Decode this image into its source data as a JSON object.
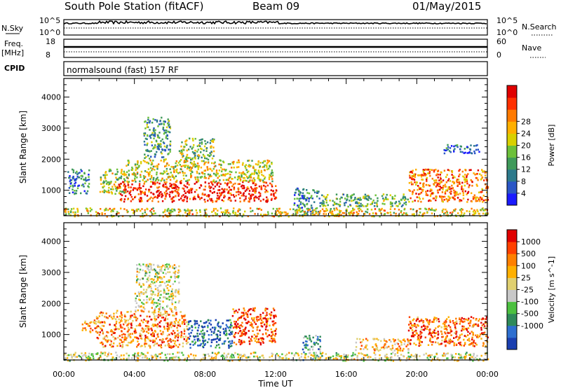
{
  "header": {
    "station": "South Pole Station (fitACF)",
    "beam": "Beam 09",
    "date": "01/May/2015"
  },
  "noise_panel": {
    "left_label": "N.Sky",
    "right_label": "N.Search",
    "left_ticks": [
      "10^5",
      "10^0"
    ],
    "right_ticks": [
      "10^5",
      "10^0"
    ]
  },
  "freq_panel": {
    "left_label_1": "Freq.",
    "left_label_2": "[MHz]",
    "right_label": "Nave",
    "left_ticks": [
      "18",
      "8"
    ],
    "right_ticks": [
      "60",
      "0"
    ]
  },
  "cpid": {
    "label": "CPID",
    "value": "normalsound (fast) 157 RF"
  },
  "chart_data": [
    {
      "type": "heatmap",
      "panel": "power",
      "ylabel": "Slant Range [km]",
      "xlabel": "",
      "x_ticks": [
        "00:00",
        "04:00",
        "08:00",
        "12:00",
        "16:00",
        "20:00",
        "00:00"
      ],
      "y_ticks": [
        1000,
        2000,
        3000,
        4000
      ],
      "ylim": [
        180,
        4600
      ],
      "xlim_hours": [
        0,
        24
      ],
      "colorbar": {
        "label": "Power [dB]",
        "ticks": [
          "4",
          "8",
          "12",
          "16",
          "20",
          "24",
          "28"
        ],
        "colors": [
          "#1a1aff",
          "#2a56c6",
          "#2d7a8c",
          "#3f9a5a",
          "#6cc03a",
          "#d8d000",
          "#ffb000",
          "#ff7a00",
          "#ff3000",
          "#e00000"
        ]
      },
      "regions": [
        {
          "t0": 0.2,
          "t1": 1.4,
          "r0": 900,
          "r1": 1700,
          "level": 0.25
        },
        {
          "t0": 2.0,
          "t1": 3.5,
          "r0": 900,
          "r1": 1700,
          "level": 0.5
        },
        {
          "t0": 3.0,
          "t1": 12.0,
          "r0": 650,
          "r1": 1300,
          "level": 0.9
        },
        {
          "t0": 3.5,
          "t1": 11.8,
          "r0": 1300,
          "r1": 2000,
          "level": 0.55
        },
        {
          "t0": 4.5,
          "t1": 6.0,
          "r0": 2000,
          "r1": 3400,
          "level": 0.35
        },
        {
          "t0": 6.5,
          "t1": 8.5,
          "r0": 2000,
          "r1": 2700,
          "level": 0.45
        },
        {
          "t0": 13.0,
          "t1": 14.5,
          "r0": 200,
          "r1": 1100,
          "level": 0.25
        },
        {
          "t0": 14.5,
          "t1": 19.5,
          "r0": 500,
          "r1": 900,
          "level": 0.4
        },
        {
          "t0": 19.5,
          "t1": 24.0,
          "r0": 650,
          "r1": 1700,
          "level": 0.75
        },
        {
          "t0": 21.5,
          "t1": 23.5,
          "r0": 2200,
          "r1": 2500,
          "level": 0.2
        },
        {
          "t0": 0.0,
          "t1": 24.0,
          "r0": 180,
          "r1": 450,
          "level": 0.6
        }
      ]
    },
    {
      "type": "heatmap",
      "panel": "velocity",
      "ylabel": "Slant Range [km]",
      "xlabel": "Time UT",
      "x_ticks": [
        "00:00",
        "04:00",
        "08:00",
        "12:00",
        "16:00",
        "20:00",
        "00:00"
      ],
      "y_ticks": [
        1000,
        2000,
        3000,
        4000
      ],
      "ylim": [
        180,
        4600
      ],
      "xlim_hours": [
        0,
        24
      ],
      "colorbar": {
        "label": "Velocity [m s^-1]",
        "ticks": [
          "1000",
          "500",
          "100",
          "25",
          "-25",
          "-100",
          "-500",
          "-1000"
        ],
        "colors": [
          "#1a3fb0",
          "#2e6fd0",
          "#2f8a5a",
          "#4cc040",
          "#c8c8c8",
          "#e0d070",
          "#ffb000",
          "#ff8000",
          "#ff4000",
          "#e00000"
        ]
      },
      "regions": [
        {
          "t0": 1.0,
          "t1": 1.8,
          "r0": 1100,
          "r1": 1500,
          "level": 0.75
        },
        {
          "t0": 1.8,
          "t1": 7.0,
          "r0": 600,
          "r1": 1800,
          "level": 0.72
        },
        {
          "t0": 4.0,
          "t1": 6.5,
          "r0": 1800,
          "r1": 3300,
          "level": 0.5
        },
        {
          "t0": 7.0,
          "t1": 9.5,
          "r0": 600,
          "r1": 1500,
          "level": 0.15
        },
        {
          "t0": 9.5,
          "t1": 12.0,
          "r0": 700,
          "r1": 1900,
          "level": 0.85
        },
        {
          "t0": 13.5,
          "t1": 14.5,
          "r0": 200,
          "r1": 1000,
          "level": 0.3
        },
        {
          "t0": 16.5,
          "t1": 19.5,
          "r0": 500,
          "r1": 900,
          "level": 0.65
        },
        {
          "t0": 19.5,
          "t1": 24.0,
          "r0": 650,
          "r1": 1600,
          "level": 0.8
        },
        {
          "t0": 0.0,
          "t1": 24.0,
          "r0": 180,
          "r1": 450,
          "level": 0.5
        }
      ]
    }
  ]
}
